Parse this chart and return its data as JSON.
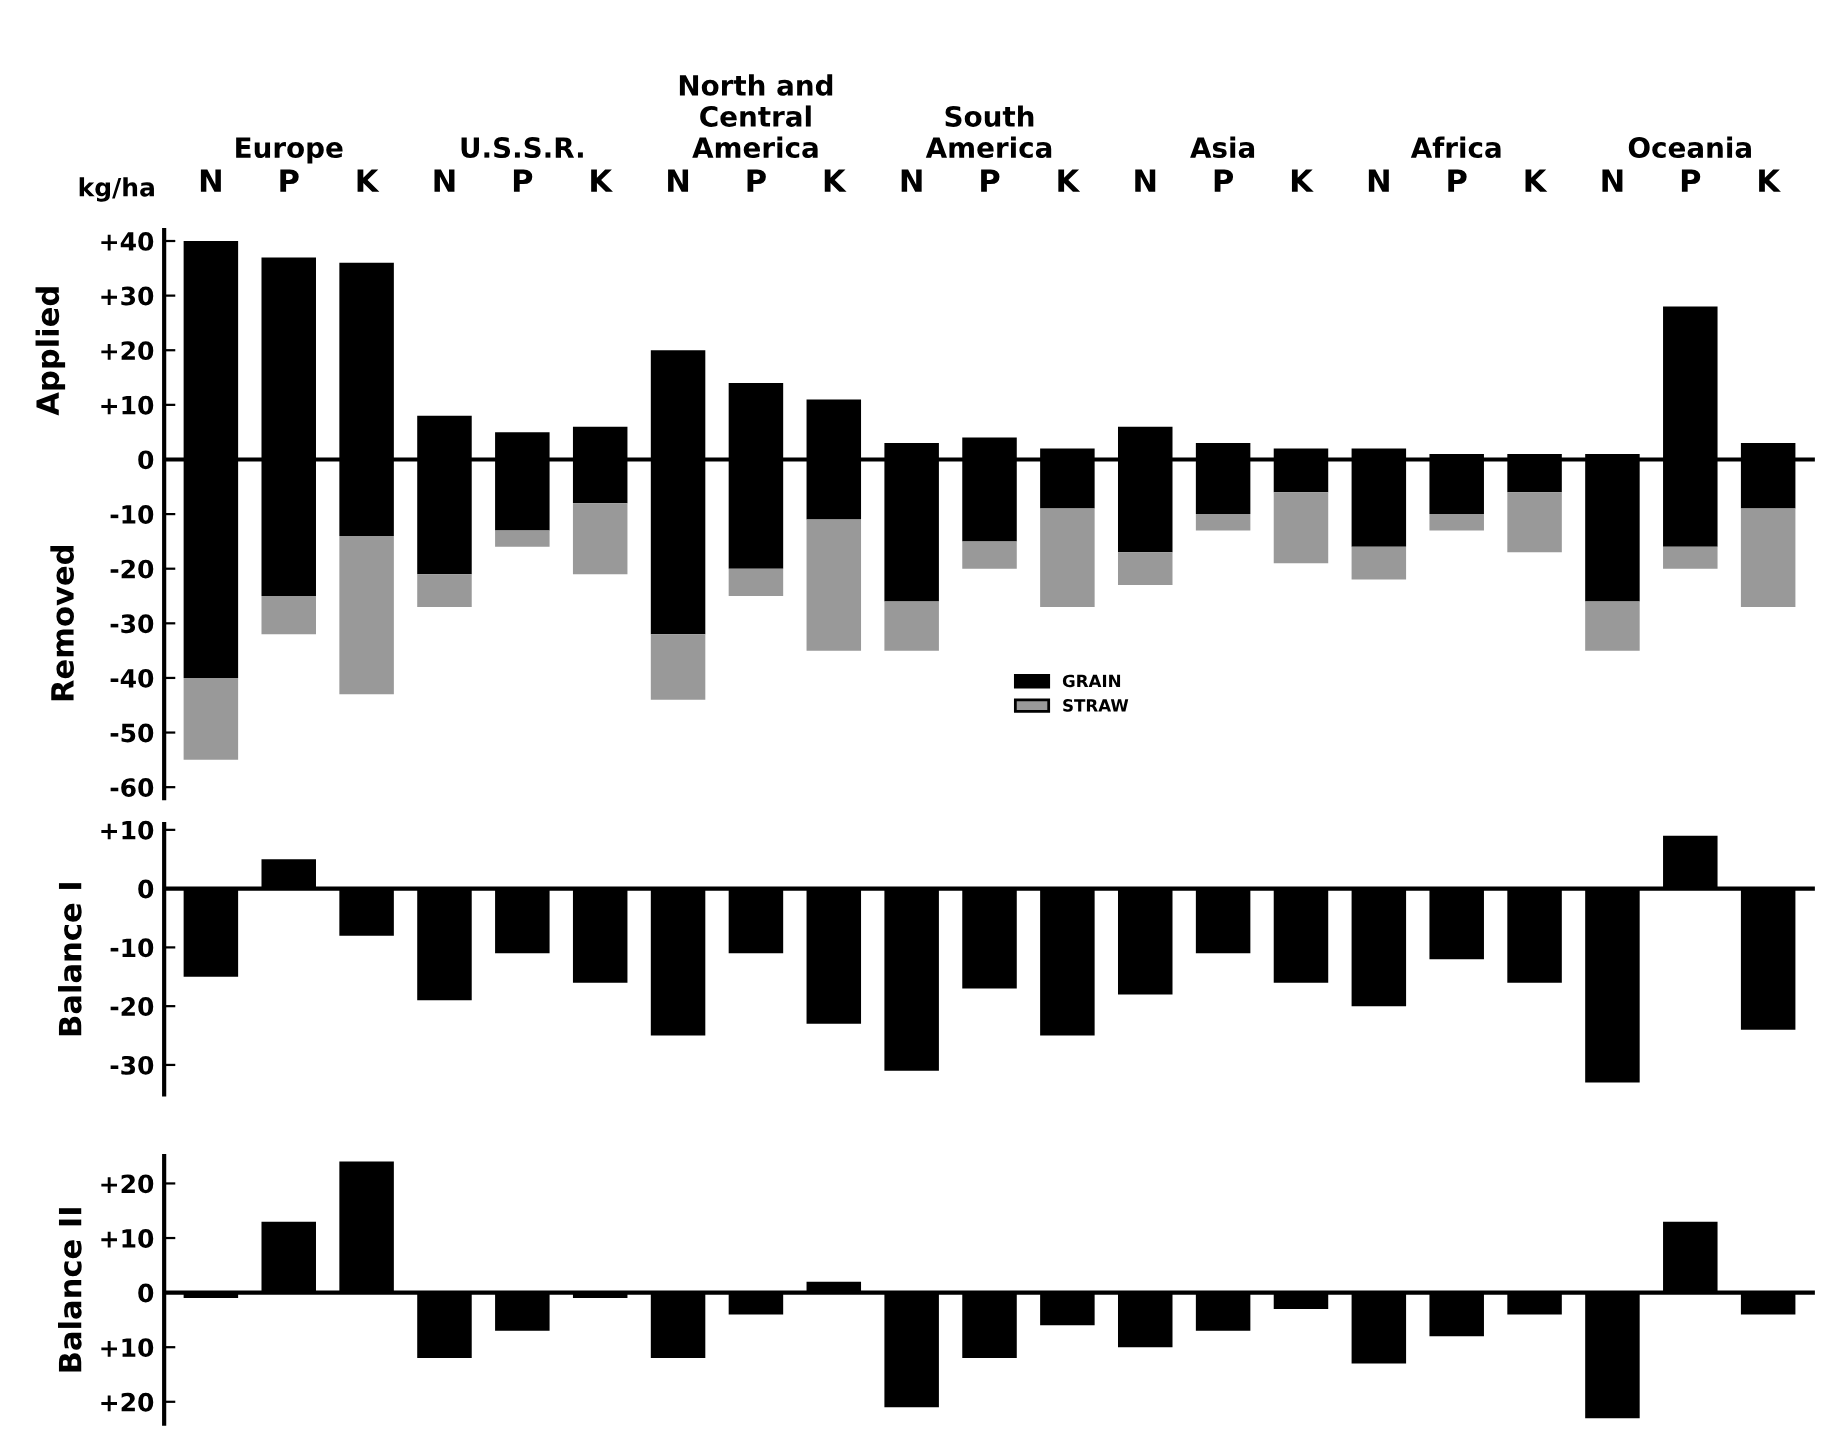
{
  "chart_data": [
    {
      "type": "bar",
      "stacked": true,
      "ylabel": "Applied",
      "categories": [
        "N",
        "P",
        "K",
        "N",
        "P",
        "K",
        "N",
        "P",
        "K",
        "N",
        "P",
        "K",
        "N",
        "P",
        "K",
        "N",
        "P",
        "K",
        "N",
        "P",
        "K"
      ],
      "series": [
        {
          "color": "#000000",
          "values": [
            40,
            37,
            36,
            8,
            5,
            6,
            20,
            14,
            11,
            3,
            4,
            2,
            6,
            3,
            2,
            2,
            1,
            1,
            1,
            28,
            3
          ]
        },
        {
          "name": "GRAIN",
          "color": "#000000",
          "values": [
            -40,
            -25,
            -14,
            -21,
            -13,
            -8,
            -32,
            -20,
            -11,
            -26,
            -15,
            -9,
            -17,
            -10,
            -6,
            -16,
            -10,
            -6,
            -26,
            -16,
            -9
          ]
        },
        {
          "name": "STRAW",
          "color": "#999999",
          "values": [
            -15,
            -7,
            -29,
            -6,
            -3,
            -13,
            -12,
            -5,
            -24,
            -9,
            -5,
            -18,
            -6,
            -3,
            -13,
            -6,
            -3,
            -11,
            -9,
            -4,
            -18
          ]
        }
      ],
      "ylim": [
        -62,
        42
      ],
      "yticks": [
        {
          "value": 40,
          "label": "+40"
        },
        {
          "value": 30,
          "label": "+30"
        },
        {
          "value": 20,
          "label": "+20"
        },
        {
          "value": 10,
          "label": "+10"
        },
        0,
        {
          "value": -10,
          "label": "-10"
        },
        {
          "value": -20,
          "label": "-20"
        },
        {
          "value": -30,
          "label": "-30"
        },
        {
          "value": -40,
          "label": "-40"
        },
        {
          "value": -50,
          "label": "-50"
        },
        {
          "value": -60,
          "label": "-60"
        }
      ],
      "legend": "bottom",
      "grid": false,
      "ref_lines": [
        {
          "axis": "y",
          "value": 0,
          "color": "#000000"
        }
      ],
      "annotations": [
        "Removed",
        "kg/ha",
        "Europe",
        "U.S.S.R.",
        "North and\nCentral\nAmerica",
        "South\nAmerica",
        "Asia",
        "Africa",
        "Oceania"
      ]
    },
    {
      "type": "bar",
      "ylabel": "Balance I",
      "categories": [
        null,
        null,
        null,
        null,
        null,
        null,
        null,
        null,
        null,
        null,
        null,
        null,
        null,
        null,
        null,
        null,
        null,
        null,
        null,
        null,
        null
      ],
      "series": [
        {
          "color": "#000000",
          "values": [
            -15,
            5,
            -8,
            -19,
            -11,
            -16,
            -25,
            -11,
            -23,
            -31,
            -17,
            -25,
            -18,
            -11,
            -16,
            -20,
            -12,
            -16,
            -33,
            9,
            -24
          ]
        }
      ],
      "ylim": [
        -35,
        11
      ],
      "yticks": [
        {
          "value": 10,
          "label": "+10"
        },
        0,
        {
          "value": -10,
          "label": "-10"
        },
        {
          "value": -20,
          "label": "-20"
        },
        {
          "value": -30,
          "label": "-30"
        }
      ],
      "legend": false,
      "grid": false,
      "ref_lines": [
        {
          "axis": "y",
          "value": 0,
          "color": "#000000"
        }
      ]
    },
    {
      "type": "bar",
      "ylabel": "Balance II",
      "categories": [
        null,
        null,
        null,
        null,
        null,
        null,
        null,
        null,
        null,
        null,
        null,
        null,
        null,
        null,
        null,
        null,
        null,
        null,
        null,
        null,
        null
      ],
      "series": [
        {
          "color": "#000000",
          "values": [
            -1,
            13,
            24,
            -12,
            -7,
            -1,
            -12,
            -4,
            2,
            -21,
            -12,
            -6,
            -10,
            -7,
            -3,
            -13,
            -8,
            -4,
            -23,
            13,
            -4
          ]
        }
      ],
      "ylim": [
        -24,
        25
      ],
      "yticks": [
        {
          "value": 20,
          "label": "+20"
        },
        {
          "value": 10,
          "label": "+10"
        },
        0,
        {
          "value": -10,
          "label": "+10"
        },
        {
          "value": -20,
          "label": "+20"
        }
      ],
      "legend": false,
      "grid": false,
      "ref_lines": [
        {
          "axis": "y",
          "value": 0,
          "color": "#000000"
        }
      ]
    }
  ]
}
